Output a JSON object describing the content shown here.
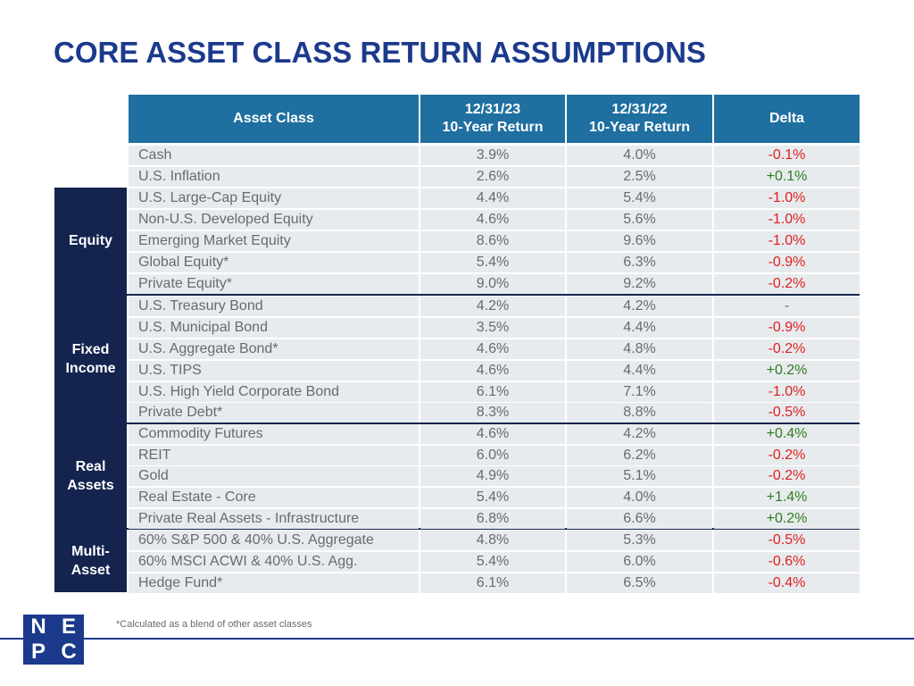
{
  "title": "CORE ASSET CLASS RETURN ASSUMPTIONS",
  "headers": {
    "asset_class": "Asset Class",
    "y23_line1": "12/31/23",
    "y23_line2": "10-Year Return",
    "y22_line1": "12/31/22",
    "y22_line2": "10-Year Return",
    "delta": "Delta"
  },
  "groups": {
    "equity": "Equity",
    "fixed_income_1": "Fixed",
    "fixed_income_2": "Income",
    "real_assets_1": "Real",
    "real_assets_2": "Assets",
    "multi_asset_1": "Multi-",
    "multi_asset_2": "Asset"
  },
  "rows": [
    {
      "name": "Cash",
      "y23": "3.9%",
      "y22": "4.0%",
      "delta": "-0.1%"
    },
    {
      "name": "U.S. Inflation",
      "y23": "2.6%",
      "y22": "2.5%",
      "delta": "+0.1%"
    },
    {
      "name": "U.S. Large-Cap Equity",
      "y23": "4.4%",
      "y22": "5.4%",
      "delta": "-1.0%"
    },
    {
      "name": "Non-U.S. Developed Equity",
      "y23": "4.6%",
      "y22": "5.6%",
      "delta": "-1.0%"
    },
    {
      "name": "Emerging Market Equity",
      "y23": "8.6%",
      "y22": "9.6%",
      "delta": "-1.0%"
    },
    {
      "name": "Global Equity*",
      "y23": "5.4%",
      "y22": "6.3%",
      "delta": "-0.9%"
    },
    {
      "name": "Private Equity*",
      "y23": "9.0%",
      "y22": "9.2%",
      "delta": "-0.2%"
    },
    {
      "name": "U.S. Treasury Bond",
      "y23": "4.2%",
      "y22": "4.2%",
      "delta": "-"
    },
    {
      "name": "U.S. Municipal Bond",
      "y23": "3.5%",
      "y22": "4.4%",
      "delta": "-0.9%"
    },
    {
      "name": "U.S. Aggregate Bond*",
      "y23": "4.6%",
      "y22": "4.8%",
      "delta": "-0.2%"
    },
    {
      "name": "U.S. TIPS",
      "y23": "4.6%",
      "y22": "4.4%",
      "delta": "+0.2%"
    },
    {
      "name": "U.S. High Yield Corporate Bond",
      "y23": "6.1%",
      "y22": "7.1%",
      "delta": "-1.0%"
    },
    {
      "name": "Private Debt*",
      "y23": "8.3%",
      "y22": "8.8%",
      "delta": "-0.5%"
    },
    {
      "name": "Commodity Futures",
      "y23": "4.6%",
      "y22": "4.2%",
      "delta": "+0.4%"
    },
    {
      "name": "REIT",
      "y23": "6.0%",
      "y22": "6.2%",
      "delta": "-0.2%"
    },
    {
      "name": "Gold",
      "y23": "4.9%",
      "y22": "5.1%",
      "delta": "-0.2%"
    },
    {
      "name": "Real Estate - Core",
      "y23": "5.4%",
      "y22": "4.0%",
      "delta": "+1.4%"
    },
    {
      "name": "Private Real Assets - Infrastructure",
      "y23": "6.8%",
      "y22": "6.6%",
      "delta": "+0.2%"
    },
    {
      "name": "60% S&P 500 & 40% U.S. Aggregate",
      "y23": "4.8%",
      "y22": "5.3%",
      "delta": "-0.5%"
    },
    {
      "name": "60% MSCI ACWI & 40% U.S. Agg.",
      "y23": "5.4%",
      "y22": "6.0%",
      "delta": "-0.6%"
    },
    {
      "name": "Hedge Fund*",
      "y23": "6.1%",
      "y22": "6.5%",
      "delta": "-0.4%"
    }
  ],
  "footnote": "*Calculated as a blend of other asset classes",
  "logo": {
    "l1": "N",
    "l2": "E",
    "l3": "P",
    "l4": "C"
  },
  "colors": {
    "header_blue": "#1f6fa0",
    "navy": "#14244f",
    "title_blue": "#1b3a8c",
    "negative": "#e02020",
    "positive": "#2e7d1e"
  }
}
